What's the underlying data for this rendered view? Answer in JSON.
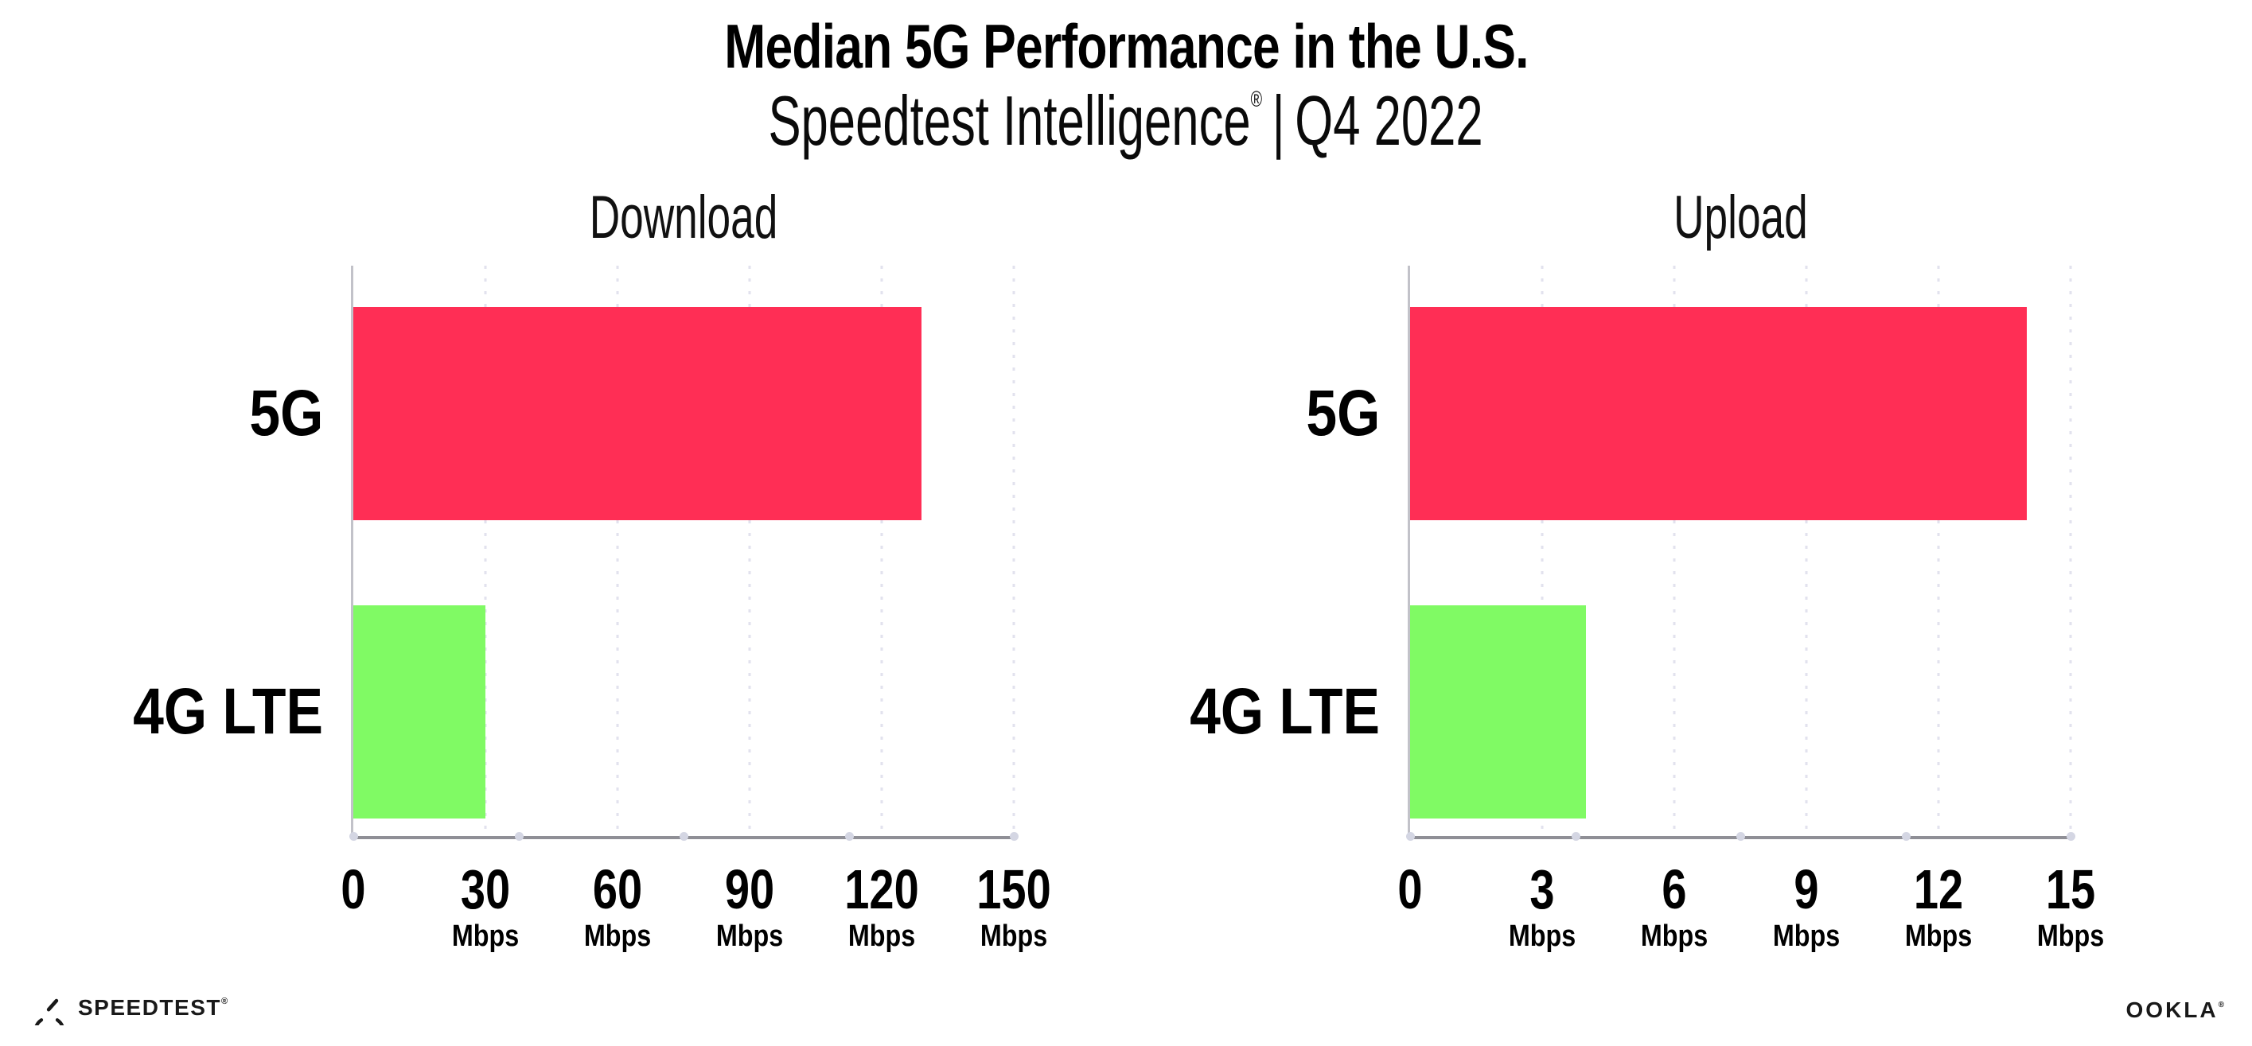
{
  "header": {
    "title": "Median 5G Performance in the U.S.",
    "subtitle_brand": "Speedtest Intelligence",
    "subtitle_reg": "®",
    "subtitle_separator": "|",
    "subtitle_period": "Q4 2022"
  },
  "chart_data": [
    {
      "type": "bar",
      "orientation": "horizontal",
      "title": "Download",
      "unit": "Mbps",
      "categories": [
        "5G",
        "4G LTE"
      ],
      "values": [
        129,
        30
      ],
      "xlim": [
        0,
        150
      ],
      "xticks": [
        0,
        30,
        60,
        90,
        120,
        150
      ],
      "bar_colors": [
        "#ff2e55",
        "#80fa64"
      ],
      "grid": "dotted-vertical-at-ticks",
      "legend": "none"
    },
    {
      "type": "bar",
      "orientation": "horizontal",
      "title": "Upload",
      "unit": "Mbps",
      "categories": [
        "5G",
        "4G LTE"
      ],
      "values": [
        14,
        4
      ],
      "xlim": [
        0,
        15
      ],
      "xticks": [
        0,
        3,
        6,
        9,
        12,
        15
      ],
      "bar_colors": [
        "#ff2e55",
        "#80fa64"
      ],
      "grid": "dotted-vertical-at-ticks",
      "legend": "none"
    }
  ],
  "footer": {
    "speedtest_label": "SPEEDTEST",
    "speedtest_mark": "®",
    "ookla_label": "OOKLA",
    "ookla_mark": "®"
  },
  "colors": {
    "bar_5g": "#ff2e55",
    "bar_4g_lte": "#80fa64",
    "x_axis_line": "#8f8f96",
    "y_axis_line": "#c2c2c9",
    "gridline": "#e2e2ee",
    "axis_tick_dot": "#d4d6e3",
    "text": "#000000"
  }
}
